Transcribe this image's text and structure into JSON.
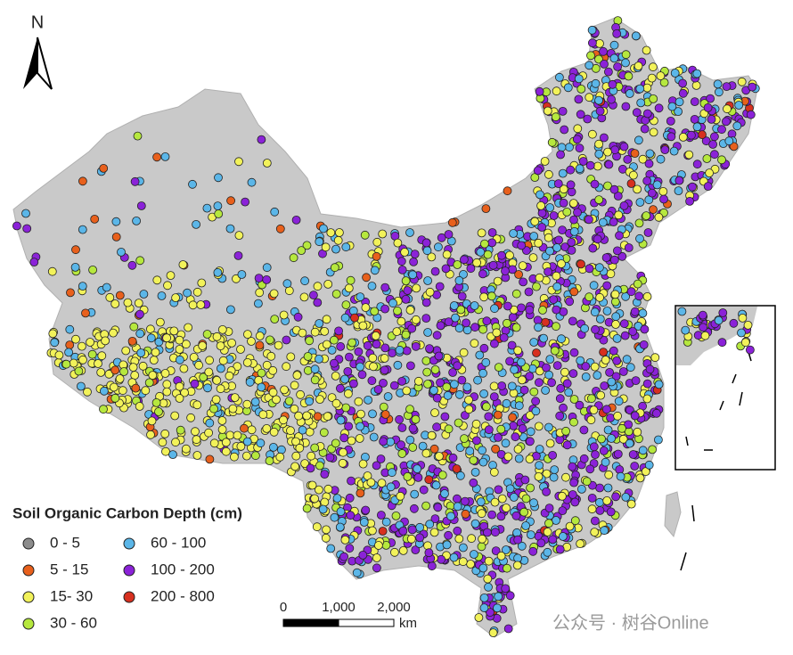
{
  "map": {
    "north_label": "N",
    "legend": {
      "title": "Soil Organic Carbon Depth (cm)",
      "items": [
        {
          "label": "0 - 5",
          "color": "#8c8c8c"
        },
        {
          "label": "5 - 15",
          "color": "#e8601c"
        },
        {
          "label": "15- 30",
          "color": "#f2f25a"
        },
        {
          "label": "30 - 60",
          "color": "#b6e83e"
        },
        {
          "label": "60 - 100",
          "color": "#5bb6e8"
        },
        {
          "label": "100 - 200",
          "color": "#8b22d8"
        },
        {
          "label": "200 - 800",
          "color": "#d7301f"
        }
      ]
    },
    "scale_bar": {
      "ticks": [
        0,
        {
          "value": 1000,
          "label": "1,000"
        },
        {
          "value": 2000,
          "label": "2,000"
        }
      ],
      "unit": "km"
    }
  },
  "watermark": "公众号 · 树谷Online"
}
